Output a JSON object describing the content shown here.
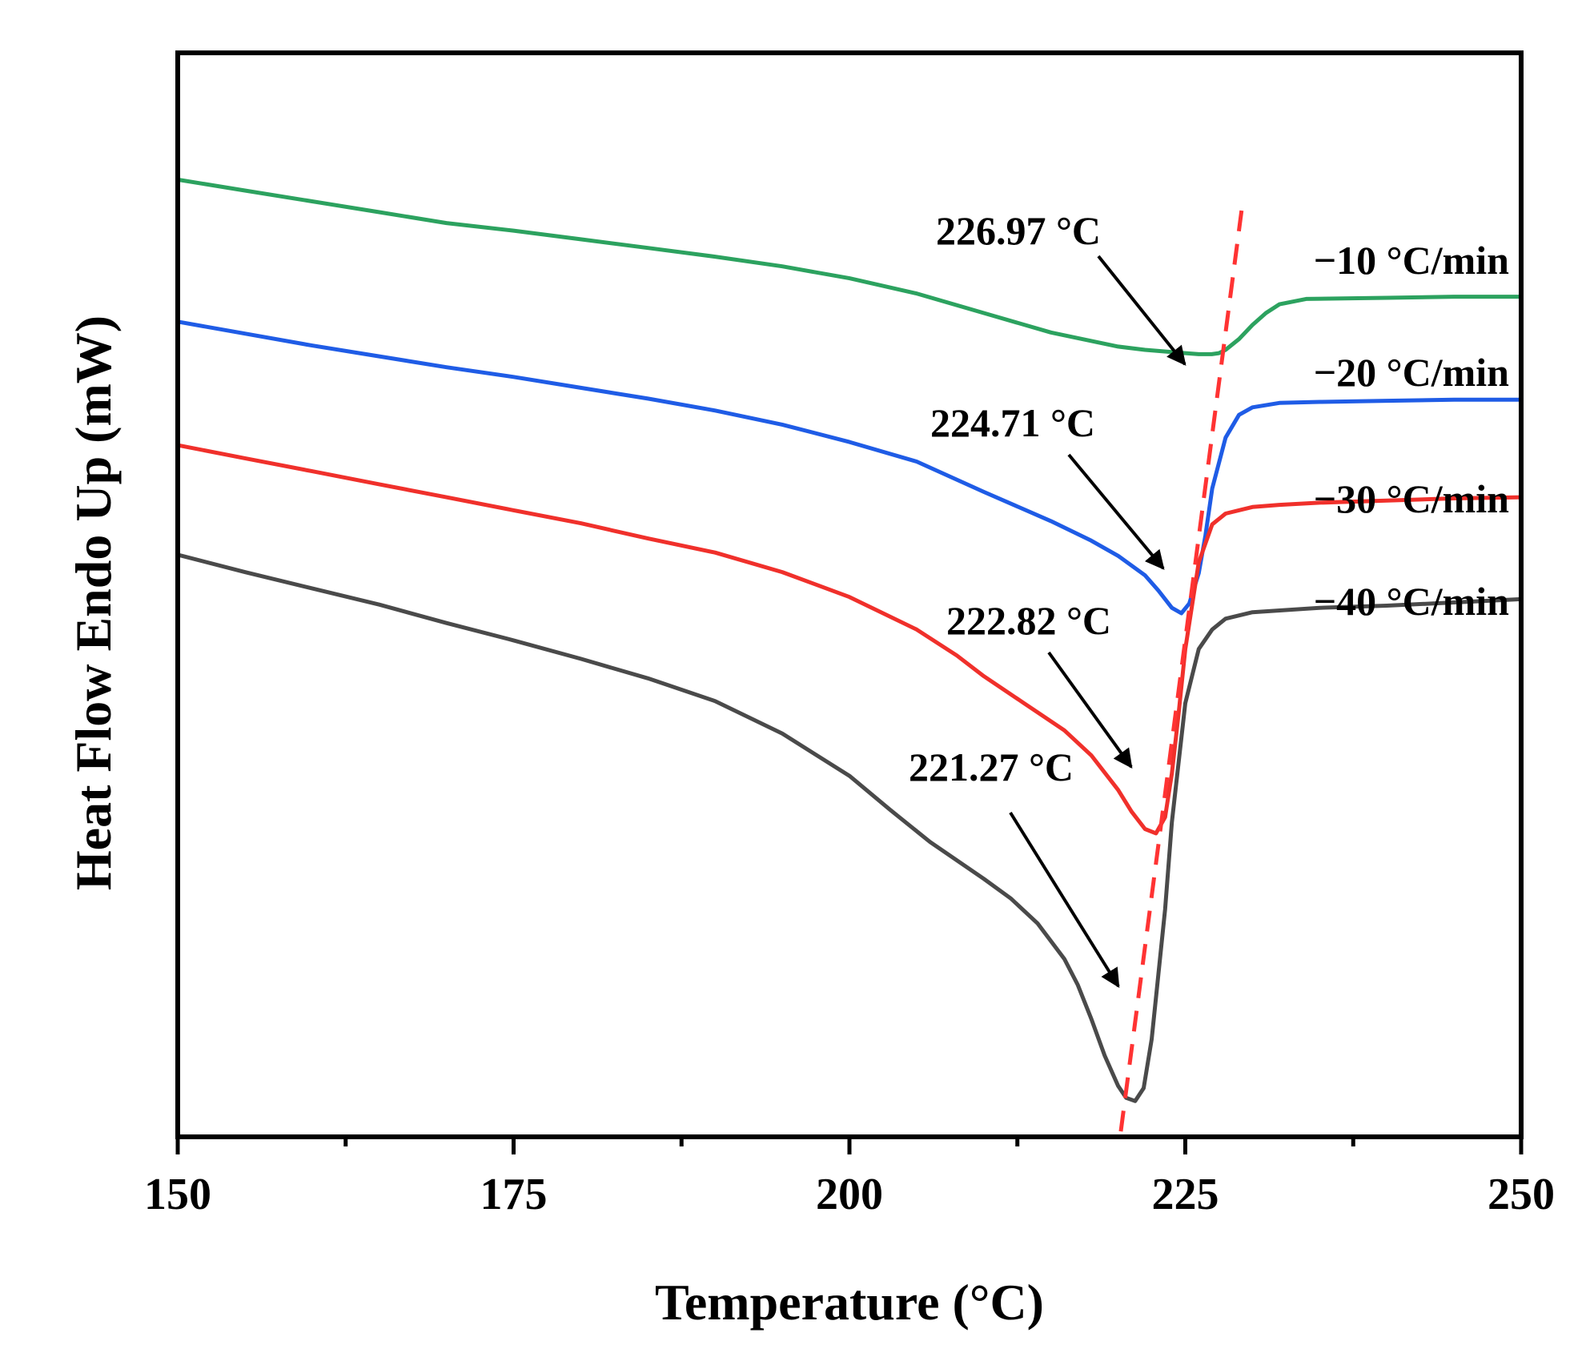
{
  "chart_data": {
    "type": "line",
    "title": "",
    "xlabel": "Temperature (°C)",
    "ylabel": "Heat Flow Endo Up (mW)",
    "xlim": [
      150,
      250
    ],
    "ylim": [
      0,
      100
    ],
    "xticks": [
      150,
      175,
      200,
      225,
      250
    ],
    "xtick_labels": [
      "150",
      "175",
      "200",
      "225",
      "250"
    ],
    "y_ticks_shown": false,
    "grid": false,
    "legend": "curve labels at right edge",
    "series": [
      {
        "name": "−10 °C/min",
        "color": "#2ca25f",
        "peak_label": "226.97 °C",
        "peak_x": 226.97,
        "x": [
          150,
          155,
          160,
          165,
          170,
          175,
          180,
          185,
          190,
          195,
          200,
          205,
          210,
          215,
          220,
          222,
          224,
          225,
          226,
          226.97,
          227.5,
          228,
          229,
          230,
          231,
          232,
          234,
          240,
          245,
          250
        ],
        "y": [
          88.3,
          87.3,
          86.3,
          85.3,
          84.3,
          83.6,
          82.8,
          82.0,
          81.2,
          80.3,
          79.2,
          77.8,
          76.0,
          74.2,
          72.9,
          72.6,
          72.4,
          72.3,
          72.2,
          72.2,
          72.3,
          72.6,
          73.6,
          74.9,
          76.0,
          76.8,
          77.3,
          77.4,
          77.5,
          77.5
        ]
      },
      {
        "name": "−20 °C/min",
        "color": "#1f5ce6",
        "peak_label": "224.71 °C",
        "peak_x": 224.71,
        "x": [
          150,
          155,
          160,
          165,
          170,
          175,
          180,
          185,
          190,
          195,
          200,
          205,
          210,
          215,
          218,
          220,
          222,
          223,
          224,
          224.71,
          225.3,
          226,
          226.5,
          227,
          228,
          229,
          230,
          232,
          235,
          240,
          245,
          250
        ],
        "y": [
          75.2,
          74.1,
          73.0,
          72.0,
          71.0,
          70.1,
          69.1,
          68.1,
          67.0,
          65.7,
          64.1,
          62.3,
          59.5,
          56.8,
          55.0,
          53.6,
          51.8,
          50.4,
          48.8,
          48.3,
          49.2,
          52.0,
          55.5,
          59.8,
          64.5,
          66.6,
          67.3,
          67.7,
          67.8,
          67.9,
          68.0,
          68.0
        ]
      },
      {
        "name": "−30 °C/min",
        "color": "#f0302b",
        "peak_label": "222.82 °C",
        "peak_x": 222.82,
        "x": [
          150,
          155,
          160,
          165,
          170,
          175,
          180,
          185,
          190,
          195,
          200,
          205,
          208,
          210,
          213,
          216,
          218,
          220,
          221,
          222,
          222.82,
          223.5,
          224,
          224.5,
          225,
          226,
          227,
          228,
          230,
          232,
          235,
          240,
          245,
          250
        ],
        "y": [
          63.8,
          62.6,
          61.4,
          60.2,
          59.0,
          57.8,
          56.6,
          55.2,
          53.9,
          52.1,
          49.8,
          46.8,
          44.4,
          42.5,
          40.0,
          37.5,
          35.2,
          32.0,
          30.0,
          28.4,
          28.0,
          29.5,
          33.5,
          39.0,
          45.0,
          53.0,
          56.5,
          57.5,
          58.1,
          58.3,
          58.5,
          58.7,
          58.9,
          59.0
        ]
      },
      {
        "name": "−40 °C/min",
        "color": "#4a4a4a",
        "peak_label": "221.27 °C",
        "peak_x": 221.27,
        "x": [
          150,
          155,
          160,
          165,
          170,
          175,
          180,
          185,
          190,
          195,
          200,
          203,
          206,
          210,
          212,
          214,
          216,
          217,
          218,
          219,
          220,
          220.6,
          221.27,
          221.9,
          222.5,
          223,
          223.5,
          224,
          225,
          226,
          227,
          228,
          230,
          235,
          240,
          245,
          250
        ],
        "y": [
          53.7,
          52.1,
          50.6,
          49.1,
          47.4,
          45.8,
          44.1,
          42.3,
          40.2,
          37.2,
          33.3,
          30.2,
          27.2,
          23.8,
          22.0,
          19.7,
          16.4,
          14.0,
          10.9,
          7.5,
          4.7,
          3.6,
          3.3,
          4.5,
          9.0,
          15.0,
          21.0,
          29.0,
          40.0,
          45.0,
          46.8,
          47.8,
          48.4,
          48.8,
          49.0,
          49.3,
          49.6
        ]
      }
    ],
    "annotations": [
      {
        "text": "226.97 °C",
        "points_to_x": 226.97,
        "series": "−10 °C/min"
      },
      {
        "text": "224.71 °C",
        "points_to_x": 224.71,
        "series": "−20 °C/min"
      },
      {
        "text": "222.82 °C",
        "points_to_x": 222.82,
        "series": "−30 °C/min"
      },
      {
        "text": "221.27 °C",
        "points_to_x": 221.27,
        "series": "−40 °C/min"
      }
    ],
    "trend_line": {
      "style": "dashed",
      "color": "#ff3333",
      "description": "dashed line through peak temperatures",
      "x": [
        220.2,
        229.3
      ],
      "y": [
        0.5,
        86.5
      ]
    }
  }
}
